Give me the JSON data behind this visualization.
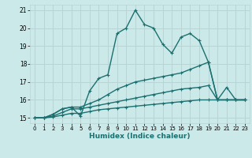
{
  "xlabel": "Humidex (Indice chaleur)",
  "bg_color": "#cce9e9",
  "grid_color": "#b8d4d4",
  "line_color": "#1a7070",
  "xlim": [
    -0.5,
    23.5
  ],
  "ylim": [
    14.7,
    21.3
  ],
  "yticks": [
    15,
    16,
    17,
    18,
    19,
    20,
    21
  ],
  "xticks": [
    0,
    1,
    2,
    3,
    4,
    5,
    6,
    7,
    8,
    9,
    10,
    11,
    12,
    13,
    14,
    15,
    16,
    17,
    18,
    19,
    20,
    21,
    22,
    23
  ],
  "series": [
    {
      "x": [
        0,
        1,
        2,
        3,
        4,
        5,
        6,
        7,
        8,
        9,
        10,
        11,
        12,
        13,
        14,
        15,
        16,
        17,
        18,
        19,
        20,
        21,
        22,
        23
      ],
      "y": [
        15.0,
        15.0,
        15.2,
        15.5,
        15.6,
        15.1,
        16.5,
        17.2,
        17.4,
        19.7,
        20.0,
        21.0,
        20.2,
        20.0,
        19.1,
        18.6,
        19.5,
        19.7,
        19.3,
        18.1,
        16.0,
        16.7,
        16.0,
        16.0
      ],
      "marker": "+",
      "linewidth": 1.0,
      "markersize": 3.5
    },
    {
      "x": [
        0,
        1,
        2,
        3,
        4,
        5,
        6,
        7,
        8,
        9,
        10,
        11,
        12,
        13,
        14,
        15,
        16,
        17,
        18,
        19,
        20,
        21,
        22,
        23
      ],
      "y": [
        15.0,
        15.0,
        15.2,
        15.5,
        15.6,
        15.6,
        15.8,
        16.0,
        16.3,
        16.6,
        16.8,
        17.0,
        17.1,
        17.2,
        17.3,
        17.4,
        17.5,
        17.7,
        17.9,
        18.1,
        16.0,
        16.0,
        16.0,
        16.0
      ],
      "marker": "+",
      "linewidth": 1.0,
      "markersize": 3.5
    },
    {
      "x": [
        0,
        1,
        2,
        3,
        4,
        5,
        6,
        7,
        8,
        9,
        10,
        11,
        12,
        13,
        14,
        15,
        16,
        17,
        18,
        19,
        20,
        21,
        22,
        23
      ],
      "y": [
        15.0,
        15.0,
        15.1,
        15.3,
        15.5,
        15.5,
        15.6,
        15.7,
        15.8,
        15.9,
        16.0,
        16.1,
        16.2,
        16.3,
        16.4,
        16.5,
        16.6,
        16.65,
        16.7,
        16.8,
        16.0,
        16.0,
        16.0,
        16.0
      ],
      "marker": "+",
      "linewidth": 1.0,
      "markersize": 3.5
    },
    {
      "x": [
        0,
        1,
        2,
        3,
        4,
        5,
        6,
        7,
        8,
        9,
        10,
        11,
        12,
        13,
        14,
        15,
        16,
        17,
        18,
        19,
        20,
        21,
        22,
        23
      ],
      "y": [
        15.0,
        15.0,
        15.05,
        15.15,
        15.25,
        15.25,
        15.35,
        15.45,
        15.5,
        15.55,
        15.6,
        15.65,
        15.7,
        15.75,
        15.8,
        15.85,
        15.9,
        15.95,
        16.0,
        16.0,
        16.0,
        16.0,
        16.0,
        16.0
      ],
      "marker": "+",
      "linewidth": 1.0,
      "markersize": 3.5
    }
  ]
}
